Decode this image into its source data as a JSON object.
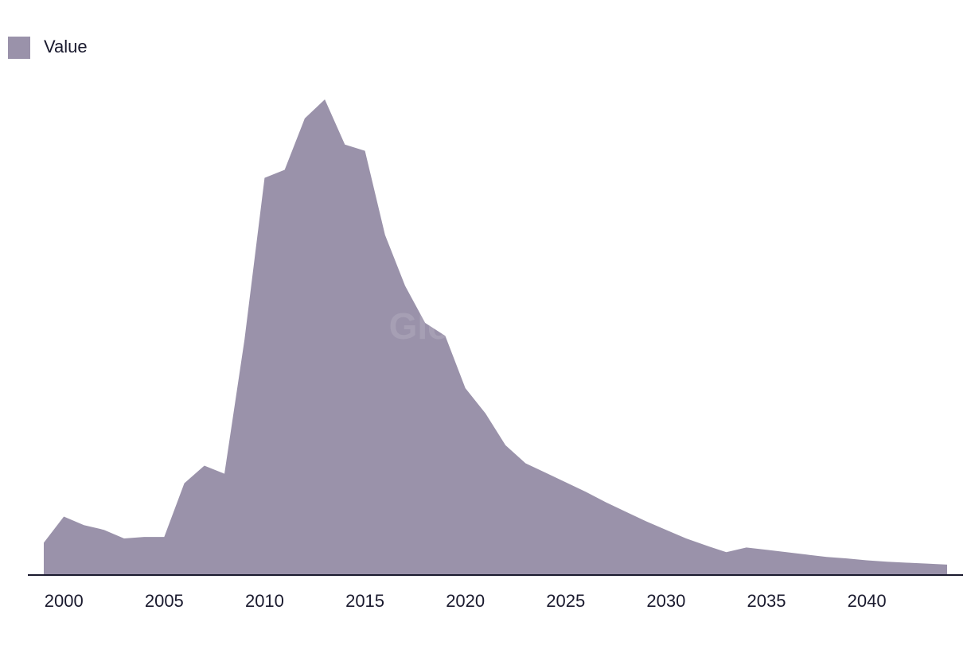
{
  "chart_data": {
    "type": "area",
    "title": "",
    "xlabel": "",
    "ylabel": "",
    "legend": {
      "position": "top-left",
      "entries": [
        "Value"
      ]
    },
    "grid": false,
    "y_axis_visible": false,
    "xlim": [
      1999,
      2044
    ],
    "ylim": [
      0,
      100
    ],
    "x_ticks": [
      2000,
      2005,
      2010,
      2015,
      2020,
      2025,
      2030,
      2035,
      2040
    ],
    "x": [
      1999,
      2000,
      2001,
      2002,
      2003,
      2004,
      2005,
      2006,
      2007,
      2008,
      2009,
      2010,
      2011,
      2012,
      2013,
      2014,
      2015,
      2016,
      2017,
      2018,
      2019,
      2020,
      2021,
      2022,
      2023,
      2024,
      2025,
      2026,
      2027,
      2028,
      2029,
      2030,
      2031,
      2032,
      2033,
      2034,
      2035,
      2036,
      2037,
      2038,
      2039,
      2040,
      2041,
      2042,
      2043,
      2044
    ],
    "series": [
      {
        "name": "Value",
        "color": "#9a92aa",
        "values": [
          6.8,
          12.3,
          10.5,
          9.5,
          7.7,
          8.0,
          8.0,
          19.3,
          23.0,
          21.3,
          49.5,
          83.5,
          85.2,
          96.0,
          100.0,
          90.5,
          89.2,
          71.5,
          60.8,
          53.0,
          50.3,
          39.3,
          34.0,
          27.3,
          23.5,
          21.5,
          19.5,
          17.5,
          15.3,
          13.3,
          11.3,
          9.5,
          7.7,
          6.2,
          4.8,
          5.8,
          5.3,
          4.8,
          4.3,
          3.8,
          3.5,
          3.1,
          2.8,
          2.6,
          2.4,
          2.2
        ]
      }
    ],
    "watermark": "GlobalData",
    "colors": {
      "area": "#9a92aa",
      "axis": "#1a1a2e",
      "text": "#1a1a2e"
    }
  }
}
